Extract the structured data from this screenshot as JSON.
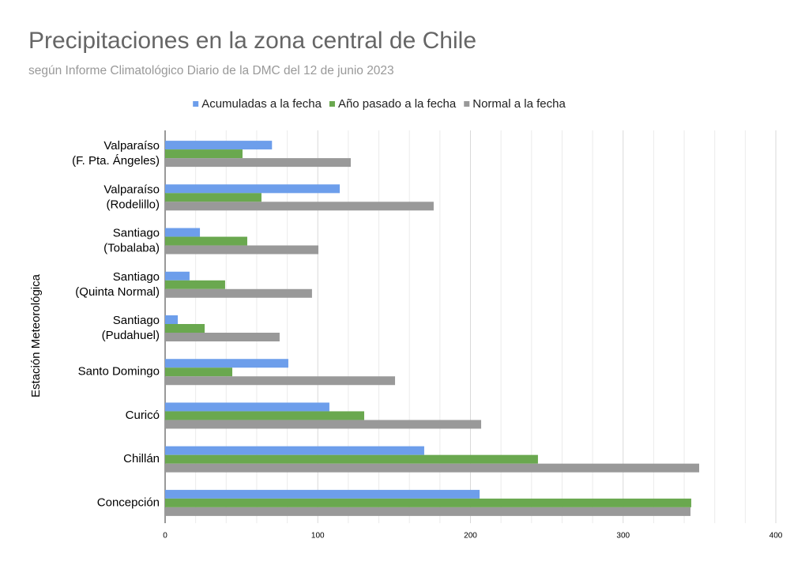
{
  "chart_data": {
    "type": "barh",
    "title": "Precipitaciones en la zona central de Chile",
    "subtitle": "según Informe Climatológico Diario de la DMC del 12 de junio 2023",
    "y_label": "Estación Meteorológica",
    "categories": [
      [
        "Valparaíso",
        "(F. Pta. Ángeles)"
      ],
      [
        "Valparaíso",
        "(Rodelillo)"
      ],
      [
        "Santiago",
        "(Tobalaba)"
      ],
      [
        "Santiago",
        "(Quinta Normal)"
      ],
      [
        "Santiago",
        "(Pudahuel)"
      ],
      [
        "Santo Domingo"
      ],
      [
        "Curicó"
      ],
      [
        "Chillán"
      ],
      [
        "Concepción"
      ]
    ],
    "series": [
      {
        "name": "Acumuladas a la fecha",
        "color": "#6d9eeb",
        "values": [
          70,
          114.4,
          22.8,
          16,
          8.3,
          80.7,
          107.6,
          169.7,
          206
        ]
      },
      {
        "name": "Año pasado a la fecha",
        "color": "#6aa84f",
        "values": [
          50.7,
          63.1,
          53.8,
          39.3,
          25.9,
          44,
          130.4,
          244.2,
          344.6
        ]
      },
      {
        "name": "Normal a la fecha",
        "color": "#999999",
        "values": [
          121.6,
          175.9,
          100.4,
          96.2,
          75,
          150.6,
          207,
          349.8,
          344.1
        ]
      }
    ],
    "xlim": [
      0,
      400
    ],
    "xticks": [
      0,
      100,
      200,
      300,
      400
    ],
    "minor_gridlines": [
      20,
      40,
      60,
      80,
      120,
      140,
      160,
      180,
      220,
      240,
      260,
      280,
      320,
      340,
      360,
      380
    ],
    "grid": true,
    "legend": "top"
  }
}
